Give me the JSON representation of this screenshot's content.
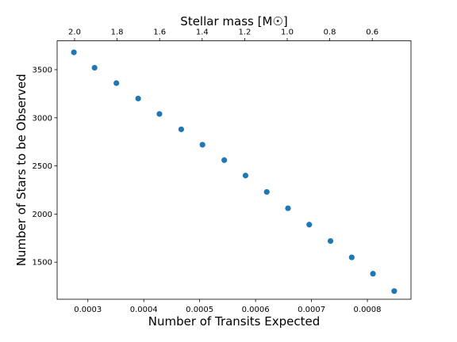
{
  "chart_data": {
    "type": "scatter",
    "title": "",
    "xlabel": "Number of Transits Expected",
    "ylabel": "Number of Stars to be Observed",
    "top_xlabel": "Stellar mass [M☉]",
    "xlim": [
      0.000245,
      0.000878
    ],
    "ylim": [
      1115,
      3800
    ],
    "xticks": [
      0.0003,
      0.0004,
      0.0005,
      0.0006,
      0.0007,
      0.0008
    ],
    "xtick_labels": [
      "0.0003",
      "0.0004",
      "0.0005",
      "0.0006",
      "0.0007",
      "0.0008"
    ],
    "yticks": [
      1500,
      2000,
      2500,
      3000,
      3500
    ],
    "ytick_labels": [
      "1500",
      "2000",
      "2500",
      "3000",
      "3500"
    ],
    "top_ticks": [
      2.0,
      1.8,
      1.6,
      1.4,
      1.2,
      1.0,
      0.8,
      0.6
    ],
    "top_tick_labels": [
      "2.0",
      "1.8",
      "1.6",
      "1.4",
      "1.2",
      "1.0",
      "0.8",
      "0.6"
    ],
    "top_axis_range": [
      2.0,
      0.5
    ],
    "grid": false,
    "marker_color": "#1f77b4",
    "series": [
      {
        "x": [
          0.000275,
          0.000312,
          0.000351,
          0.00039,
          0.000428,
          0.000467,
          0.000505,
          0.000544,
          0.000582,
          0.00062,
          0.000658,
          0.000696,
          0.000734,
          0.000772,
          0.00081,
          0.000848
        ],
        "y": [
          3680,
          3520,
          3360,
          3200,
          3040,
          2880,
          2720,
          2560,
          2400,
          2230,
          2060,
          1890,
          1720,
          1550,
          1380,
          1200
        ]
      }
    ]
  }
}
